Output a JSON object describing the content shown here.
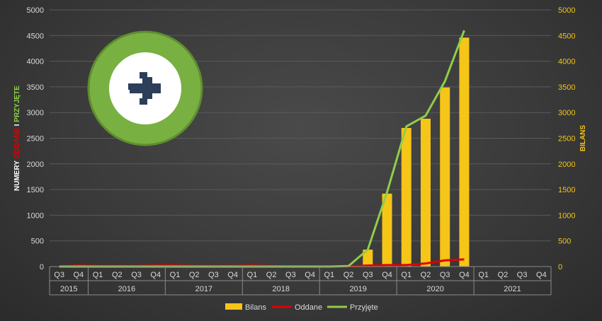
{
  "chart_data": {
    "type": "bar+line",
    "categories": [
      "Q3",
      "Q4",
      "Q1",
      "Q2",
      "Q3",
      "Q4",
      "Q1",
      "Q2",
      "Q3",
      "Q4",
      "Q1",
      "Q2",
      "Q3",
      "Q4",
      "Q1",
      "Q2",
      "Q3",
      "Q4",
      "Q1",
      "Q2",
      "Q3",
      "Q4",
      "Q1",
      "Q2",
      "Q3",
      "Q4"
    ],
    "years": [
      {
        "label": "2015",
        "count": 2
      },
      {
        "label": "2016",
        "count": 4
      },
      {
        "label": "2017",
        "count": 4
      },
      {
        "label": "2018",
        "count": 4
      },
      {
        "label": "2019",
        "count": 4
      },
      {
        "label": "2020",
        "count": 4
      },
      {
        "label": "2021",
        "count": 4
      }
    ],
    "series": [
      {
        "name": "Bilans",
        "kind": "bar",
        "color": "#f5c518",
        "axis": "right",
        "values": [
          0,
          0,
          0,
          0,
          0,
          0,
          0,
          0,
          0,
          0,
          0,
          0,
          0,
          0,
          0,
          0,
          330,
          1420,
          2700,
          2880,
          3490,
          4460,
          null,
          null,
          null,
          null
        ]
      },
      {
        "name": "Oddane",
        "kind": "line",
        "color": "#e00000",
        "axis": "left",
        "values": [
          0,
          20,
          10,
          10,
          10,
          20,
          20,
          10,
          10,
          10,
          20,
          10,
          5,
          5,
          5,
          5,
          20,
          30,
          30,
          60,
          120,
          140,
          null,
          null,
          null,
          null
        ]
      },
      {
        "name": "Przyjęte",
        "kind": "line",
        "color": "#8fce4a",
        "axis": "left",
        "values": [
          0,
          0,
          0,
          0,
          0,
          0,
          0,
          0,
          0,
          0,
          0,
          0,
          0,
          0,
          0,
          10,
          330,
          1450,
          2730,
          2940,
          3610,
          4600,
          null,
          null,
          null,
          null
        ]
      }
    ],
    "ylim": [
      0,
      5000
    ],
    "y2lim": [
      0,
      5000
    ],
    "yticks": [
      "0",
      "500",
      "1000",
      "1500",
      "2000",
      "2500",
      "3000",
      "3500",
      "4000",
      "4500",
      "5000"
    ],
    "ylabel_parts": [
      {
        "text": "NUMERY ",
        "color": "#ffffff"
      },
      {
        "text": "ODDANE",
        "color": "#e00000"
      },
      {
        "text": " I ",
        "color": "#ffffff"
      },
      {
        "text": "PRZYJĘTE",
        "color": "#8fce4a"
      }
    ],
    "y2label": "BILANS",
    "legend_position": "bottom",
    "grid": true
  },
  "logo": {
    "name": "green-circle-arrow-logo",
    "ring_color": "#7cb342",
    "arrow_color": "#2c3e5a"
  }
}
